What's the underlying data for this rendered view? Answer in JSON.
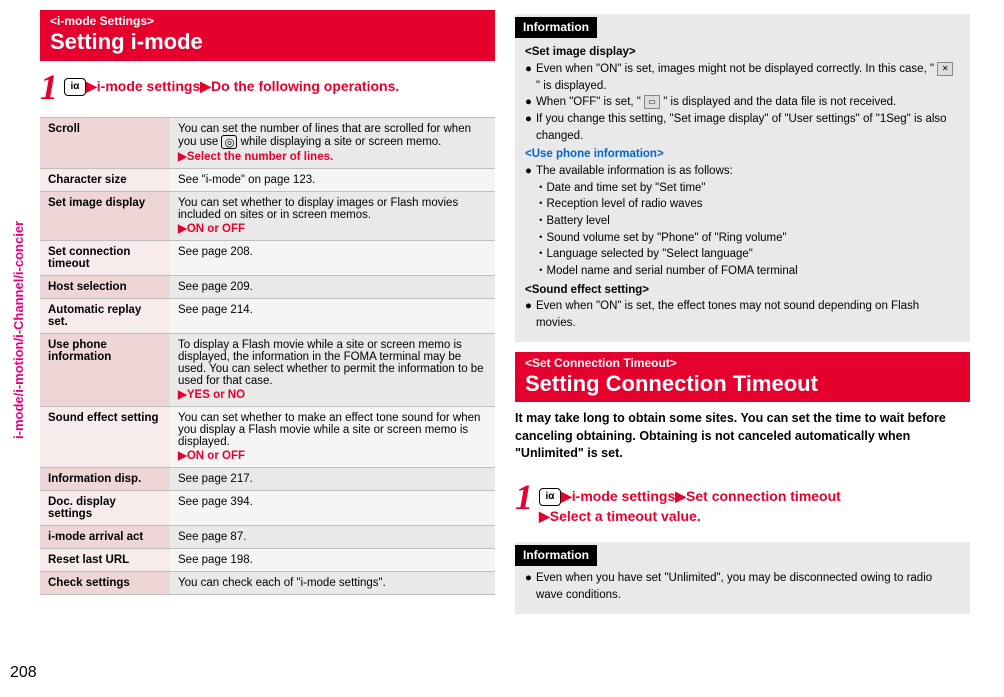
{
  "sideTab": "i-mode/i-motion/i-Channel/i-concier",
  "pageNumber": "208",
  "left": {
    "header": {
      "tag": "<i-mode Settings>",
      "title": "Setting i-mode"
    },
    "step": {
      "pre": "▶i-mode settings▶Do the following operations."
    },
    "rows": [
      {
        "k": "Scroll",
        "v1": "You can set the number of lines that are scrolled for when you use ",
        "v2": " while displaying a site or screen memo.",
        "action": "▶Select the number of lines."
      },
      {
        "k": "Character size",
        "v": "See \"i-mode\" on page 123."
      },
      {
        "k": "Set image display",
        "v": "You can set whether to display images or Flash movies included on sites or in screen memos.",
        "action": "▶ON or OFF"
      },
      {
        "k": "Set connection timeout",
        "v": "See page 208."
      },
      {
        "k": "Host selection",
        "v": "See page 209."
      },
      {
        "k": "Automatic replay set.",
        "v": "See page 214."
      },
      {
        "k": "Use phone information",
        "v": "To display a Flash movie while a site or screen memo is displayed, the information in the FOMA terminal may be used. You can select whether to permit the information to be used for that case.",
        "action": "▶YES or NO"
      },
      {
        "k": "Sound effect setting",
        "v": "You can set whether to make an effect tone sound for when you display a Flash movie while a site or screen memo is displayed.",
        "action": "▶ON or OFF"
      },
      {
        "k": "Information disp.",
        "v": "See page 217."
      },
      {
        "k": "Doc. display settings",
        "v": "See page 394."
      },
      {
        "k": "i-mode arrival act",
        "v": "See page 87."
      },
      {
        "k": "Reset last URL",
        "v": "See page 198."
      },
      {
        "k": "Check settings",
        "v": "You can check each of \"i-mode settings\"."
      }
    ]
  },
  "right": {
    "infoLabel": "Information",
    "block1": {
      "h1": "<Set image display>",
      "b1a": "Even when \"ON\" is set, images might not be displayed correctly. In this case, \" ",
      "b1b": " \" is displayed.",
      "b2a": "When \"OFF\" is set, \" ",
      "b2b": " \" is displayed and the data file is not received.",
      "b3": "If you change this setting, \"Set image display\" of \"User settings\" of \"1Seg\" is also changed.",
      "h2": "<Use phone information>",
      "b4": "The available information is as follows:",
      "s1": "Date and time set by \"Set time\"",
      "s2": "Reception level of radio waves",
      "s3": "Battery level",
      "s4": "Sound volume set by \"Phone\" of \"Ring volume\"",
      "s5": "Language selected by \"Select language\"",
      "s6": "Model name and serial number of FOMA terminal",
      "h3": "<Sound effect setting>",
      "b5": "Even when \"ON\" is set, the effect tones may not sound depending on Flash movies."
    },
    "header2": {
      "tag": "<Set Connection Timeout>",
      "title": "Setting Connection Timeout"
    },
    "intro": "It may take long to obtain some sites. You can set the time to wait before canceling obtaining. Obtaining is not canceled automatically when \"Unlimited\" is set.",
    "step2": {
      "line1": "▶i-mode settings▶Set connection timeout",
      "line2": "▶Select a timeout value."
    },
    "block2": {
      "b1": "Even when you have set \"Unlimited\", you may be disconnected owing to radio wave conditions."
    }
  }
}
